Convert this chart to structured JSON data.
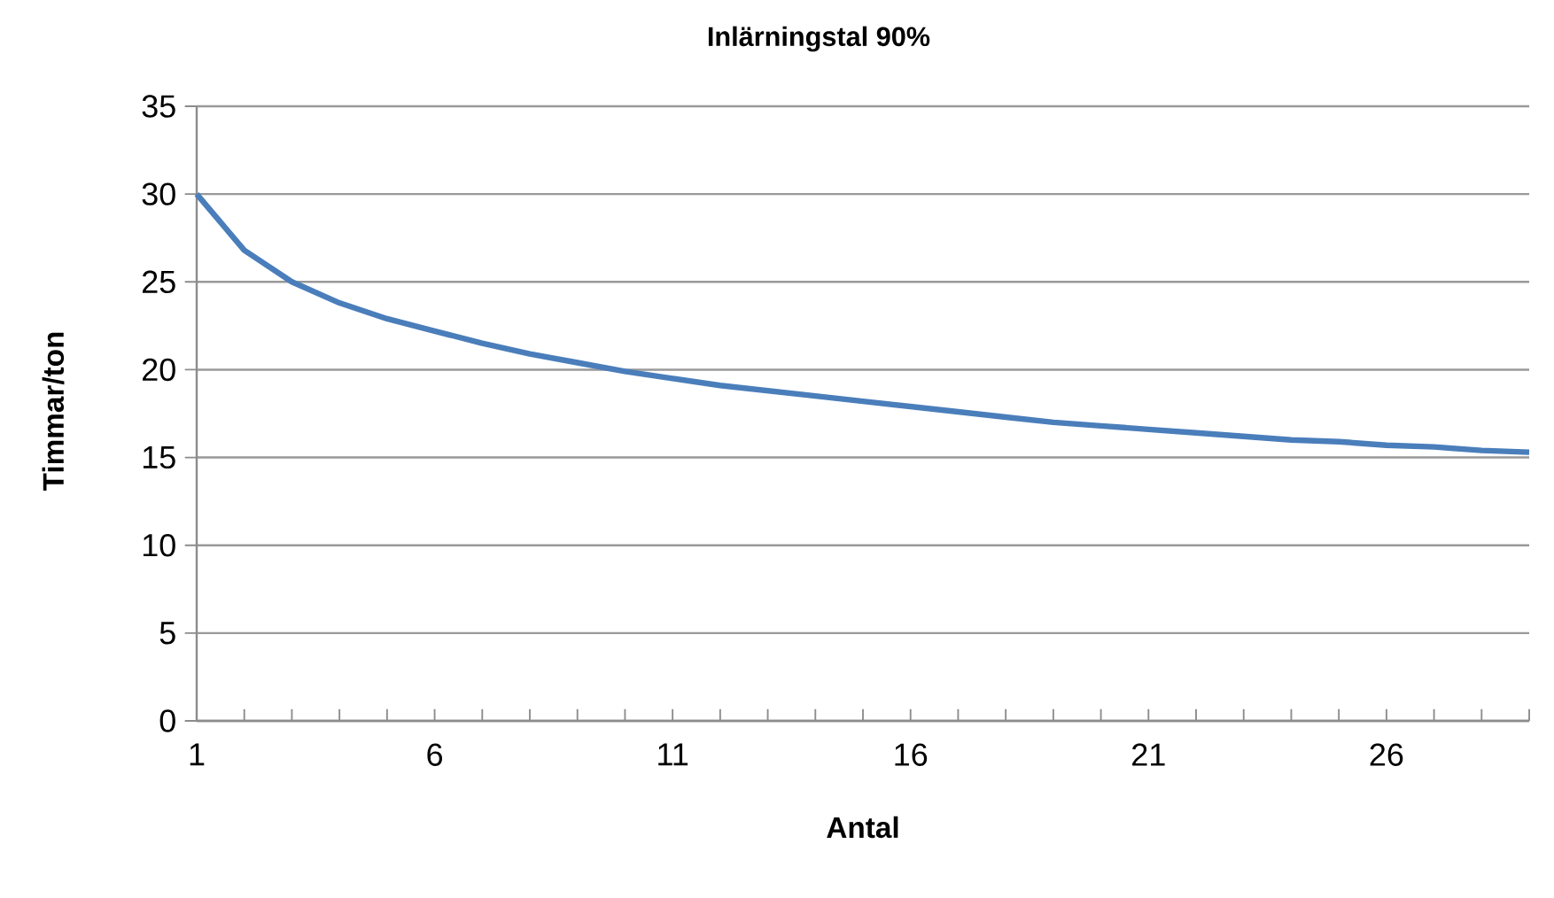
{
  "chart_data": {
    "type": "line",
    "title": "Inlärningstal 90%",
    "xlabel": "Antal",
    "ylabel": "Timmar/ton",
    "x": [
      1,
      2,
      3,
      4,
      5,
      6,
      7,
      8,
      9,
      10,
      11,
      12,
      13,
      14,
      15,
      16,
      17,
      18,
      19,
      20,
      21,
      22,
      23,
      24,
      25,
      26,
      27,
      28,
      29
    ],
    "series": [
      {
        "color": "#4a7ebb",
        "values": [
          30,
          26.8,
          25.0,
          23.8,
          22.9,
          22.2,
          21.5,
          20.9,
          20.4,
          19.9,
          19.5,
          19.1,
          18.8,
          18.5,
          18.2,
          17.9,
          17.6,
          17.3,
          17.0,
          16.8,
          16.6,
          16.4,
          16.2,
          16.0,
          15.9,
          15.7,
          15.6,
          15.4,
          15.3
        ]
      }
    ],
    "xlim": [
      1,
      29
    ],
    "xticks": [
      1,
      {
        "value": 2,
        "label": null
      },
      {
        "value": 3,
        "label": null
      },
      {
        "value": 4,
        "label": null
      },
      {
        "value": 5,
        "label": null
      },
      6,
      {
        "value": 7,
        "label": null
      },
      {
        "value": 8,
        "label": null
      },
      {
        "value": 9,
        "label": null
      },
      {
        "value": 10,
        "label": null
      },
      11,
      {
        "value": 12,
        "label": null
      },
      {
        "value": 13,
        "label": null
      },
      {
        "value": 14,
        "label": null
      },
      {
        "value": 15,
        "label": null
      },
      16,
      {
        "value": 17,
        "label": null
      },
      {
        "value": 18,
        "label": null
      },
      {
        "value": 19,
        "label": null
      },
      {
        "value": 20,
        "label": null
      },
      21,
      {
        "value": 22,
        "label": null
      },
      {
        "value": 23,
        "label": null
      },
      {
        "value": 24,
        "label": null
      },
      {
        "value": 25,
        "label": null
      },
      26,
      {
        "value": 27,
        "label": null
      },
      {
        "value": 28,
        "label": null
      },
      {
        "value": 29,
        "label": null
      }
    ],
    "ylim": [
      0,
      35
    ],
    "yticks": [
      0,
      5,
      10,
      15,
      20,
      25,
      30,
      35
    ],
    "grid": "y",
    "marker": "none",
    "line_style": "solid"
  }
}
